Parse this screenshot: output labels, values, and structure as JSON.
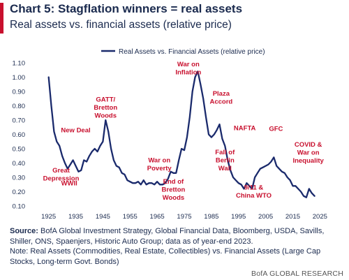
{
  "header": {
    "title": "Chart 5: Stagflation winners = real assets",
    "subtitle": "Real assets vs. financial assets (relative price)"
  },
  "footer": {
    "source_label": "Source:",
    "source_text": "BofA Global Investment Strategy, Global Financial Data, Bloomberg, USDA, Savills, Shiller, ONS, Spaenjers, Historic Auto Group; data as of year-end 2023.",
    "note_text": "Note: Real Assets (Commodities, Real Estate, Collectibles) vs. Financial Assets (Large Cap Stocks, Long-term Govt. Bonds)",
    "brand": "BofA GLOBAL RESEARCH"
  },
  "colors": {
    "line": "#1a2a6c",
    "annotation": "#c8102e",
    "text": "#1a2a4e",
    "accent": "#c8102e"
  },
  "chart_data": {
    "type": "line",
    "title": "",
    "xlabel": "",
    "ylabel": "",
    "xlim": [
      1922,
      2028
    ],
    "ylim": [
      0.1,
      1.1
    ],
    "grid": false,
    "legend_position": "top",
    "x_ticks": [
      "1925",
      "1935",
      "1945",
      "1955",
      "1965",
      "1975",
      "1985",
      "1995",
      "2005",
      "2015",
      "2025"
    ],
    "y_ticks": [
      "1.10",
      "1.00",
      "0.90",
      "0.80",
      "0.70",
      "0.60",
      "0.50",
      "0.40",
      "0.30",
      "0.20",
      "0.10"
    ],
    "series": [
      {
        "name": "Real Assets vs. Financial Assets (relative price)",
        "x": [
          1925,
          1926,
          1927,
          1928,
          1929,
          1930,
          1931,
          1932,
          1933,
          1934,
          1935,
          1936,
          1937,
          1938,
          1939,
          1940,
          1941,
          1942,
          1943,
          1944,
          1945,
          1946,
          1947,
          1948,
          1949,
          1950,
          1951,
          1952,
          1953,
          1954,
          1955,
          1956,
          1957,
          1958,
          1959,
          1960,
          1961,
          1962,
          1963,
          1964,
          1965,
          1966,
          1967,
          1968,
          1969,
          1970,
          1971,
          1972,
          1973,
          1974,
          1975,
          1976,
          1977,
          1978,
          1979,
          1980,
          1981,
          1982,
          1983,
          1984,
          1985,
          1986,
          1987,
          1988,
          1989,
          1990,
          1991,
          1992,
          1993,
          1994,
          1995,
          1996,
          1997,
          1998,
          1999,
          2000,
          2001,
          2002,
          2003,
          2004,
          2005,
          2006,
          2007,
          2008,
          2009,
          2010,
          2011,
          2012,
          2013,
          2014,
          2015,
          2016,
          2017,
          2018,
          2019,
          2020,
          2021,
          2022,
          2023
        ],
        "y": [
          1.0,
          0.8,
          0.62,
          0.55,
          0.52,
          0.45,
          0.4,
          0.36,
          0.39,
          0.42,
          0.38,
          0.34,
          0.35,
          0.42,
          0.41,
          0.45,
          0.48,
          0.5,
          0.48,
          0.52,
          0.55,
          0.7,
          0.62,
          0.5,
          0.42,
          0.38,
          0.37,
          0.33,
          0.32,
          0.28,
          0.27,
          0.26,
          0.26,
          0.27,
          0.25,
          0.28,
          0.25,
          0.26,
          0.26,
          0.25,
          0.27,
          0.25,
          0.25,
          0.26,
          0.29,
          0.34,
          0.33,
          0.33,
          0.42,
          0.5,
          0.49,
          0.58,
          0.72,
          0.9,
          1.0,
          1.04,
          0.95,
          0.85,
          0.72,
          0.6,
          0.58,
          0.6,
          0.63,
          0.67,
          0.57,
          0.52,
          0.42,
          0.35,
          0.3,
          0.28,
          0.26,
          0.25,
          0.22,
          0.26,
          0.24,
          0.22,
          0.3,
          0.33,
          0.36,
          0.37,
          0.38,
          0.39,
          0.41,
          0.44,
          0.38,
          0.36,
          0.34,
          0.33,
          0.3,
          0.28,
          0.24,
          0.24,
          0.22,
          0.2,
          0.17,
          0.16,
          0.22,
          0.19,
          0.17
        ]
      }
    ],
    "annotations": [
      {
        "lines": [
          "Great",
          "Depression"
        ],
        "x": 1929.6,
        "y": 0.335
      },
      {
        "lines": [
          "New Deal"
        ],
        "x": 1935.0,
        "y": 0.615
      },
      {
        "lines": [
          "WWII"
        ],
        "x": 1932.6,
        "y": 0.245
      },
      {
        "lines": [
          "GATT/",
          "Bretton",
          "Woods"
        ],
        "x": 1946.0,
        "y": 0.83
      },
      {
        "lines": [
          "War on",
          "Poverty"
        ],
        "x": 1965.8,
        "y": 0.405
      },
      {
        "lines": [
          "End of",
          "Bretton",
          "Woods"
        ],
        "x": 1971.0,
        "y": 0.255
      },
      {
        "lines": [
          "War on",
          "Inflation"
        ],
        "x": 1976.5,
        "y": 1.075
      },
      {
        "lines": [
          "Plaza",
          "Accord"
        ],
        "x": 1988.6,
        "y": 0.87
      },
      {
        "lines": [
          "Fall of",
          "Berlin",
          "Wall"
        ],
        "x": 1990.0,
        "y": 0.46
      },
      {
        "lines": [
          "NAFTA"
        ],
        "x": 1997.3,
        "y": 0.63
      },
      {
        "lines": [
          "GFC"
        ],
        "x": 2008.8,
        "y": 0.625
      },
      {
        "lines": [
          "9/11 &",
          "China WTO"
        ],
        "x": 2000.6,
        "y": 0.215
      },
      {
        "lines": [
          "COVID &",
          "War on",
          "Inequality"
        ],
        "x": 2020.7,
        "y": 0.515
      }
    ]
  }
}
